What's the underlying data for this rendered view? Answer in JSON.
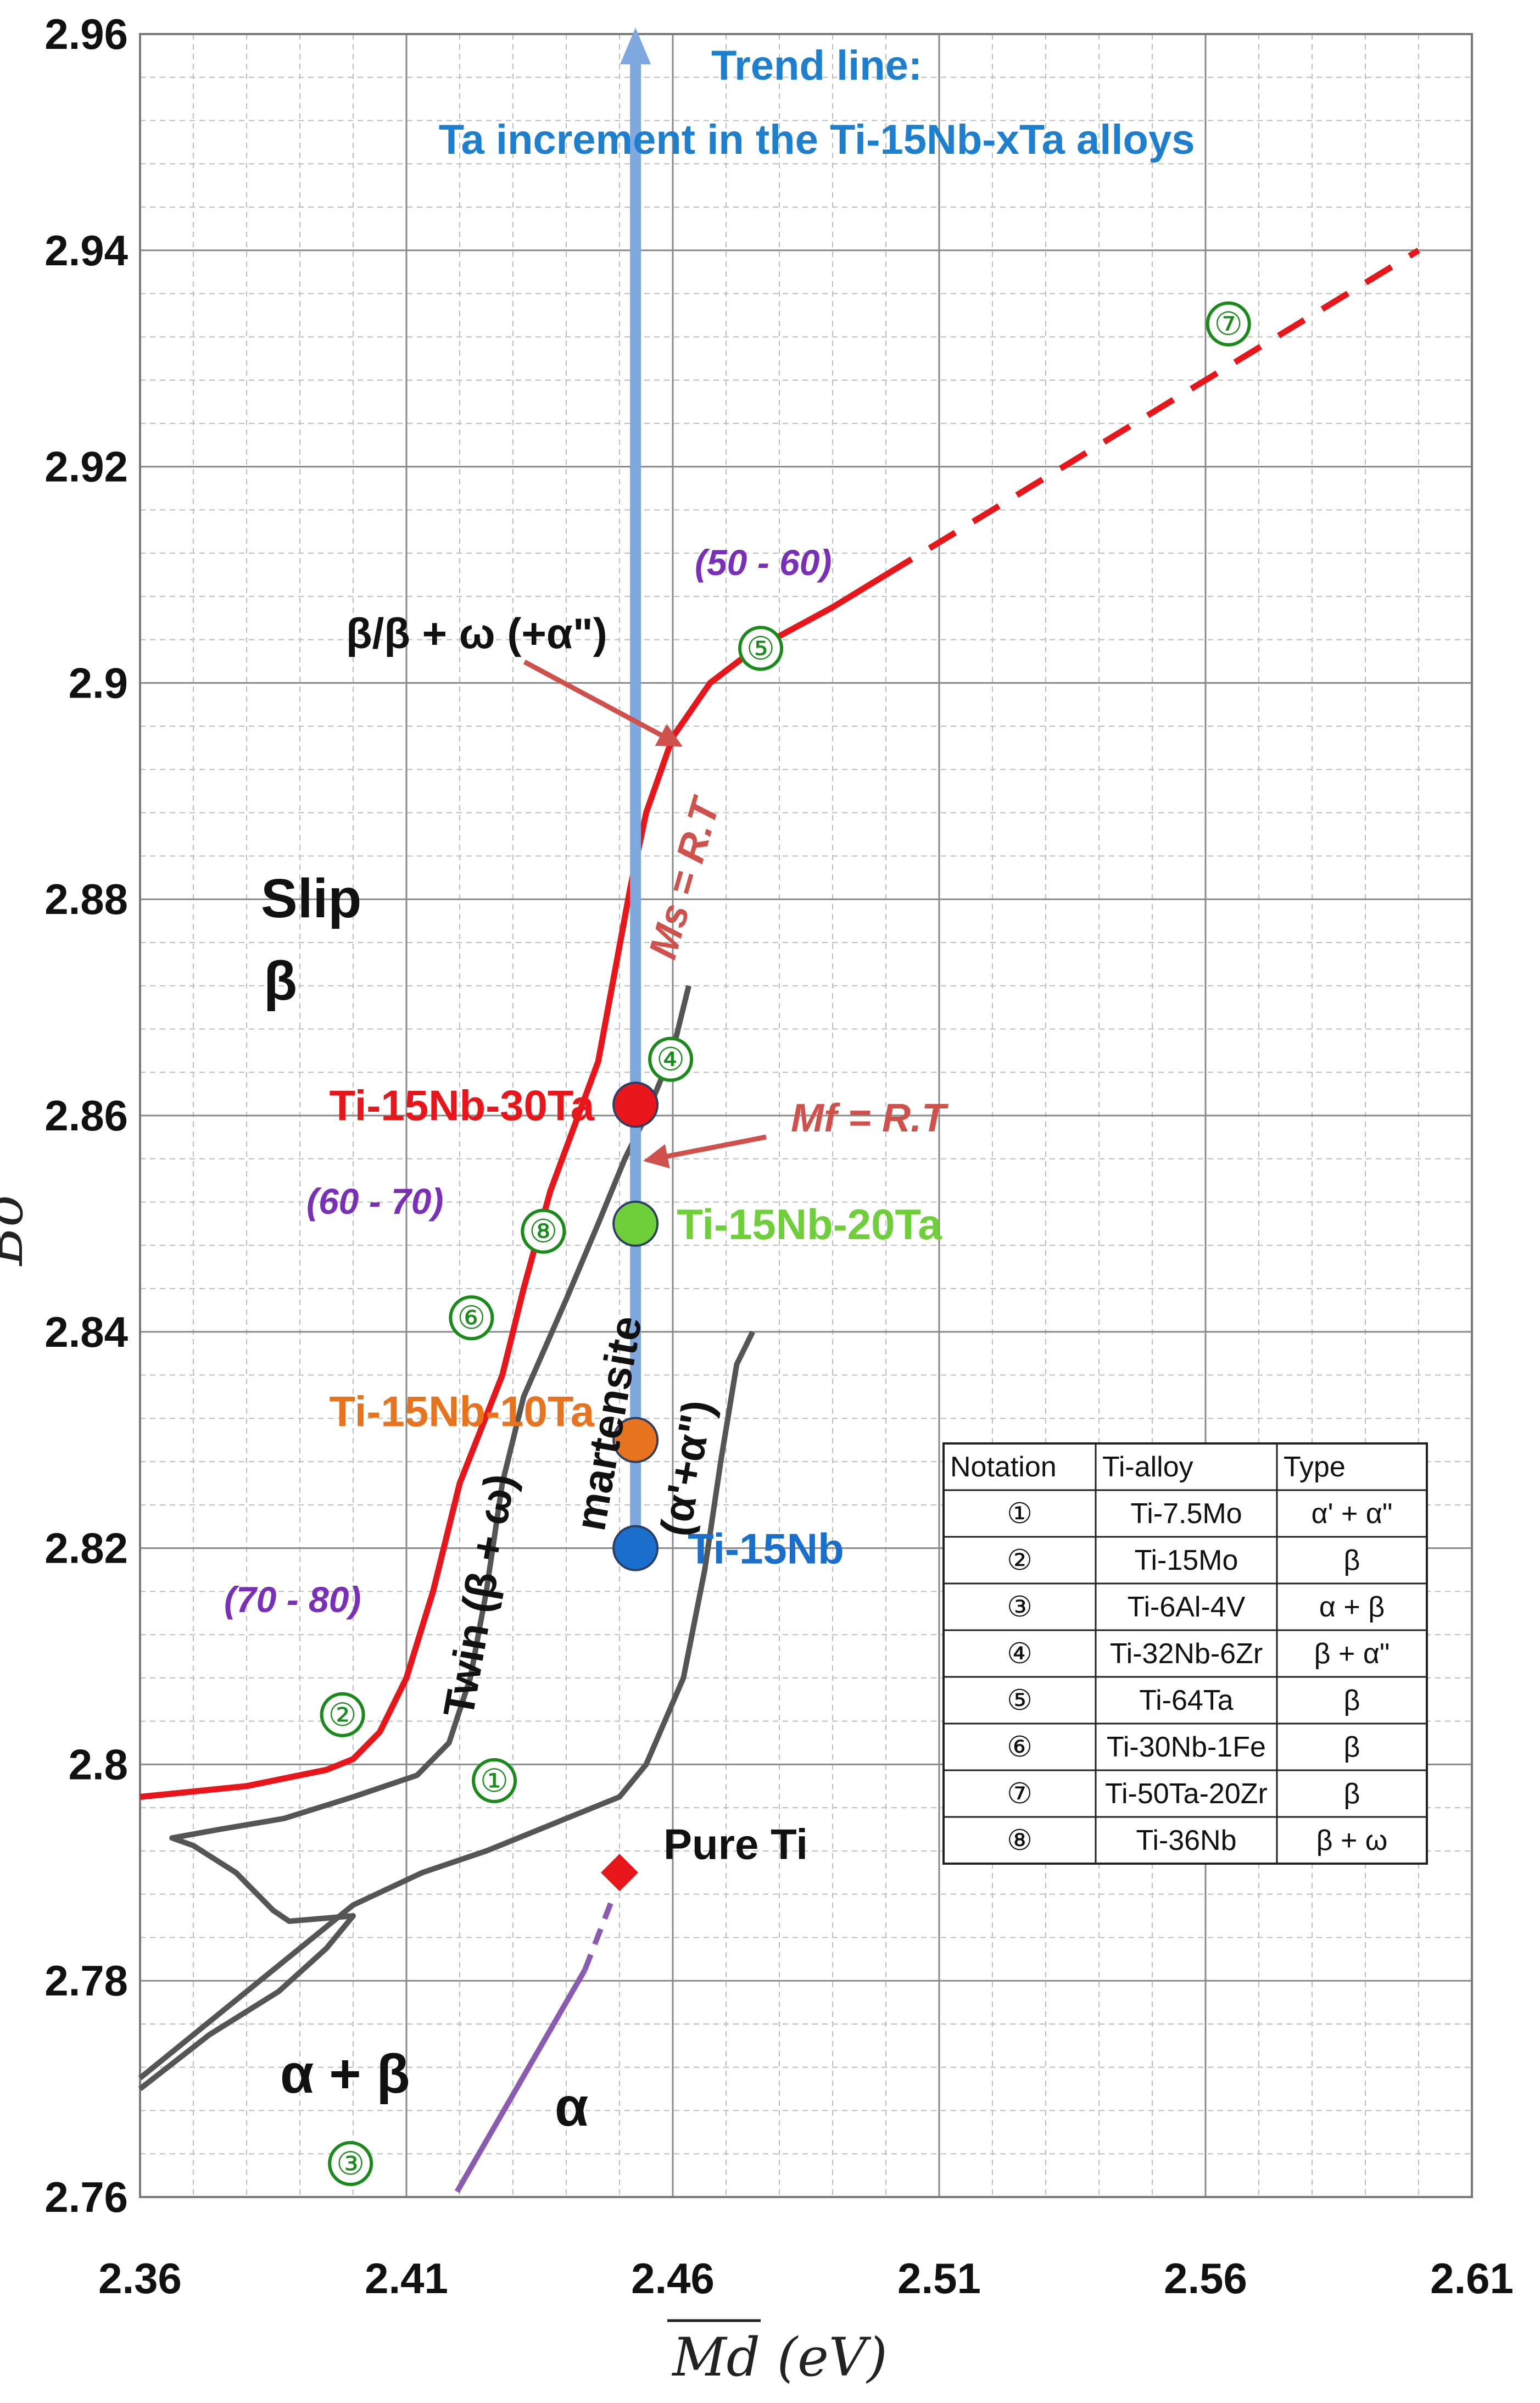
{
  "chart_data": {
    "type": "scatter",
    "xlabel": "Md (eV)",
    "ylabel": "Bo",
    "xlim": [
      2.36,
      2.61
    ],
    "ylim": [
      2.76,
      2.96
    ],
    "x_ticks": [
      "2.36",
      "2.41",
      "2.46",
      "2.51",
      "2.56",
      "2.61"
    ],
    "y_ticks": [
      "2.76",
      "2.78",
      "2.8",
      "2.82",
      "2.84",
      "2.86",
      "2.88",
      "2.9",
      "2.92",
      "2.94",
      "2.96"
    ],
    "grid": true,
    "trend_line": {
      "title": "Trend line:",
      "subtitle": "Ta increment in the Ti-15Nb-xTa alloys",
      "x": 2.453,
      "from": 2.82,
      "to": 2.96
    },
    "alloys": [
      {
        "name": "Ti-15Nb",
        "x": 2.453,
        "y": 2.82,
        "color": "#1a6fcc"
      },
      {
        "name": "Ti-15Nb-10Ta",
        "x": 2.453,
        "y": 2.83,
        "color": "#e8731f"
      },
      {
        "name": "Ti-15Nb-20Ta",
        "x": 2.453,
        "y": 2.85,
        "color": "#6fcf3a"
      },
      {
        "name": "Ti-15Nb-30Ta",
        "x": 2.453,
        "y": 2.861,
        "color": "#e8161b"
      }
    ],
    "pure_ti": {
      "name": "Pure Ti",
      "x": 2.45,
      "y": 2.79,
      "color": "#e8161b"
    },
    "boundaries": {
      "ms_line": [
        [
          2.36,
          2.797
        ],
        [
          2.38,
          2.798
        ],
        [
          2.395,
          2.7995
        ],
        [
          2.4,
          2.8005
        ],
        [
          2.405,
          2.803
        ],
        [
          2.41,
          2.808
        ],
        [
          2.415,
          2.816
        ],
        [
          2.42,
          2.826
        ],
        [
          2.428,
          2.836
        ],
        [
          2.432,
          2.844
        ],
        [
          2.437,
          2.853
        ],
        [
          2.443,
          2.861
        ],
        [
          2.446,
          2.865
        ],
        [
          2.449,
          2.873
        ],
        [
          2.452,
          2.881
        ],
        [
          2.455,
          2.888
        ],
        [
          2.46,
          2.895
        ],
        [
          2.467,
          2.9
        ],
        [
          2.475,
          2.903
        ],
        [
          2.49,
          2.907
        ],
        [
          2.5,
          2.91
        ]
      ],
      "ms_dashed": [
        [
          2.5,
          2.91
        ],
        [
          2.6,
          2.94
        ]
      ],
      "mf_line": [
        [
          2.36,
          2.771
        ],
        [
          2.37,
          2.775
        ],
        [
          2.38,
          2.779
        ],
        [
          2.39,
          2.783
        ],
        [
          2.4,
          2.787
        ],
        [
          2.413,
          2.79
        ],
        [
          2.425,
          2.792
        ],
        [
          2.43,
          2.793
        ],
        [
          2.44,
          2.795
        ],
        [
          2.45,
          2.797
        ],
        [
          2.455,
          2.8
        ],
        [
          2.462,
          2.808
        ],
        [
          2.466,
          2.818
        ],
        [
          2.469,
          2.828
        ],
        [
          2.472,
          2.837
        ],
        [
          2.475,
          2.84
        ]
      ],
      "twin_line": [
        [
          2.36,
          2.77
        ],
        [
          2.373,
          2.775
        ],
        [
          2.386,
          2.779
        ],
        [
          2.395,
          2.783
        ],
        [
          2.4,
          2.786
        ],
        [
          2.388,
          2.7855
        ],
        [
          2.385,
          2.7865
        ],
        [
          2.378,
          2.79
        ],
        [
          2.37,
          2.7925
        ],
        [
          2.366,
          2.7932
        ],
        [
          2.375,
          2.794
        ],
        [
          2.387,
          2.795
        ],
        [
          2.4,
          2.797
        ],
        [
          2.412,
          2.799
        ],
        [
          2.418,
          2.802
        ],
        [
          2.422,
          2.808
        ],
        [
          2.425,
          2.816
        ],
        [
          2.428,
          2.826
        ],
        [
          2.432,
          2.834
        ],
        [
          2.44,
          2.843
        ],
        [
          2.446,
          2.85
        ],
        [
          2.451,
          2.856
        ],
        [
          2.455,
          2.86
        ],
        [
          2.46,
          2.866
        ],
        [
          2.463,
          2.872
        ]
      ],
      "alpha_solid": [
        [
          2.4195,
          2.7605
        ],
        [
          2.4435,
          2.781
        ]
      ],
      "alpha_dashed": [
        [
          2.4435,
          2.781
        ],
        [
          2.449,
          2.788
        ]
      ]
    },
    "annotations": {
      "slip": "Slip",
      "beta": "β",
      "beta_omega_alpha": "β/β + ω (+α\")",
      "ms": "Ms = R.T",
      "mf": "Mf = R.T",
      "twin": "Twin (β + ω)",
      "martensite": "martensite",
      "martensite_phases": "(α'+α\")",
      "alpha_beta": "α + β",
      "alpha": "α",
      "range_50_60": "(50 - 60)",
      "range_60_70": "(60 - 70)",
      "range_70_80": "(70 - 80)"
    },
    "numbered_markers": [
      {
        "label": "①",
        "x": 2.4265,
        "y": 2.7985
      },
      {
        "label": "②",
        "x": 2.398,
        "y": 2.8046
      },
      {
        "label": "③",
        "x": 2.3995,
        "y": 2.7631
      },
      {
        "label": "④",
        "x": 2.4596,
        "y": 2.8652
      },
      {
        "label": "⑤",
        "x": 2.4765,
        "y": 2.9032
      },
      {
        "label": "⑥",
        "x": 2.4222,
        "y": 2.8413
      },
      {
        "label": "⑦",
        "x": 2.5643,
        "y": 2.9332
      },
      {
        "label": "⑧",
        "x": 2.4357,
        "y": 2.8493
      }
    ],
    "table": {
      "headers": [
        "Notation",
        "Ti-alloy",
        "Type"
      ],
      "rows": [
        [
          "①",
          "Ti-7.5Mo",
          "α' + α\""
        ],
        [
          "②",
          "Ti-15Mo",
          "β"
        ],
        [
          "③",
          "Ti-6Al-4V",
          "α + β"
        ],
        [
          "④",
          "Ti-32Nb-6Zr",
          "β + α\""
        ],
        [
          "⑤",
          "Ti-64Ta",
          "β"
        ],
        [
          "⑥",
          "Ti-30Nb-1Fe",
          "β"
        ],
        [
          "⑦",
          "Ti-50Ta-20Zr",
          "β"
        ],
        [
          "⑧",
          "Ti-36Nb",
          "β + ω"
        ]
      ]
    },
    "colors": {
      "ms_line": "#e8161b",
      "boundary": "#555555",
      "alpha_line": "#8a5bb0",
      "trend": "#7fa8e0",
      "marker": "#1a8a1a"
    }
  }
}
